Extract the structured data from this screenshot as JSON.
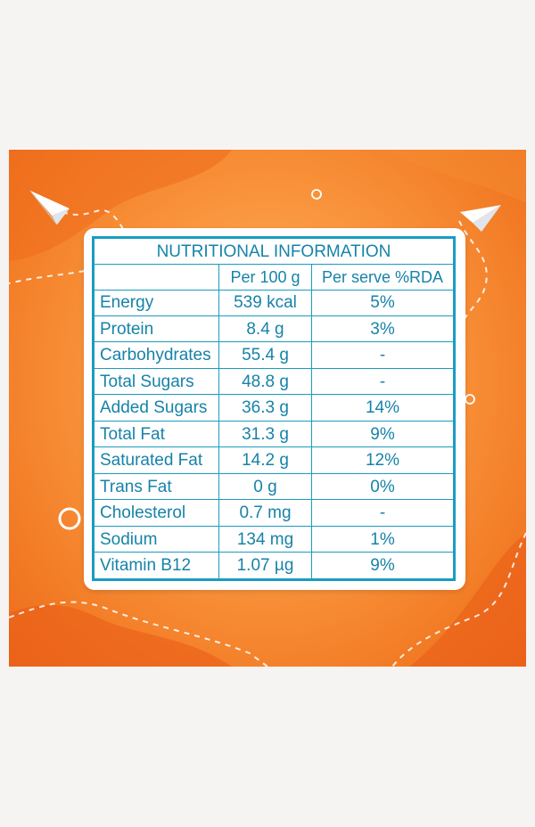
{
  "table": {
    "title": "NUTRITIONAL INFORMATION",
    "columns": [
      "",
      "Per 100 g",
      "Per serve %RDA"
    ],
    "rows": [
      {
        "name": "Energy",
        "per100": "539 kcal",
        "rda": "5%"
      },
      {
        "name": "Protein",
        "per100": "8.4 g",
        "rda": "3%"
      },
      {
        "name": "Carbohydrates",
        "per100": "55.4 g",
        "rda": "-"
      },
      {
        "name": "Total Sugars",
        "per100": "48.8 g",
        "rda": "-"
      },
      {
        "name": "Added Sugars",
        "per100": "36.3 g",
        "rda": "14%"
      },
      {
        "name": "Total Fat",
        "per100": "31.3 g",
        "rda": "9%"
      },
      {
        "name": "Saturated Fat",
        "per100": "14.2 g",
        "rda": "12%"
      },
      {
        "name": "Trans Fat",
        "per100": "0 g",
        "rda": "0%"
      },
      {
        "name": "Cholesterol",
        "per100": "0.7 mg",
        "rda": "-"
      },
      {
        "name": "Sodium",
        "per100": "134 mg",
        "rda": "1%"
      },
      {
        "name": "Vitamin B12",
        "per100": "1.07 µg",
        "rda": "9%"
      }
    ]
  },
  "colors": {
    "table_text": "#1683a8",
    "table_border": "#1a9cc0",
    "background_orange": "#f9953d"
  },
  "decorations": [
    "paper-plane-icon",
    "paper-plane-icon",
    "circle-icon",
    "circle-icon",
    "circle-icon"
  ]
}
